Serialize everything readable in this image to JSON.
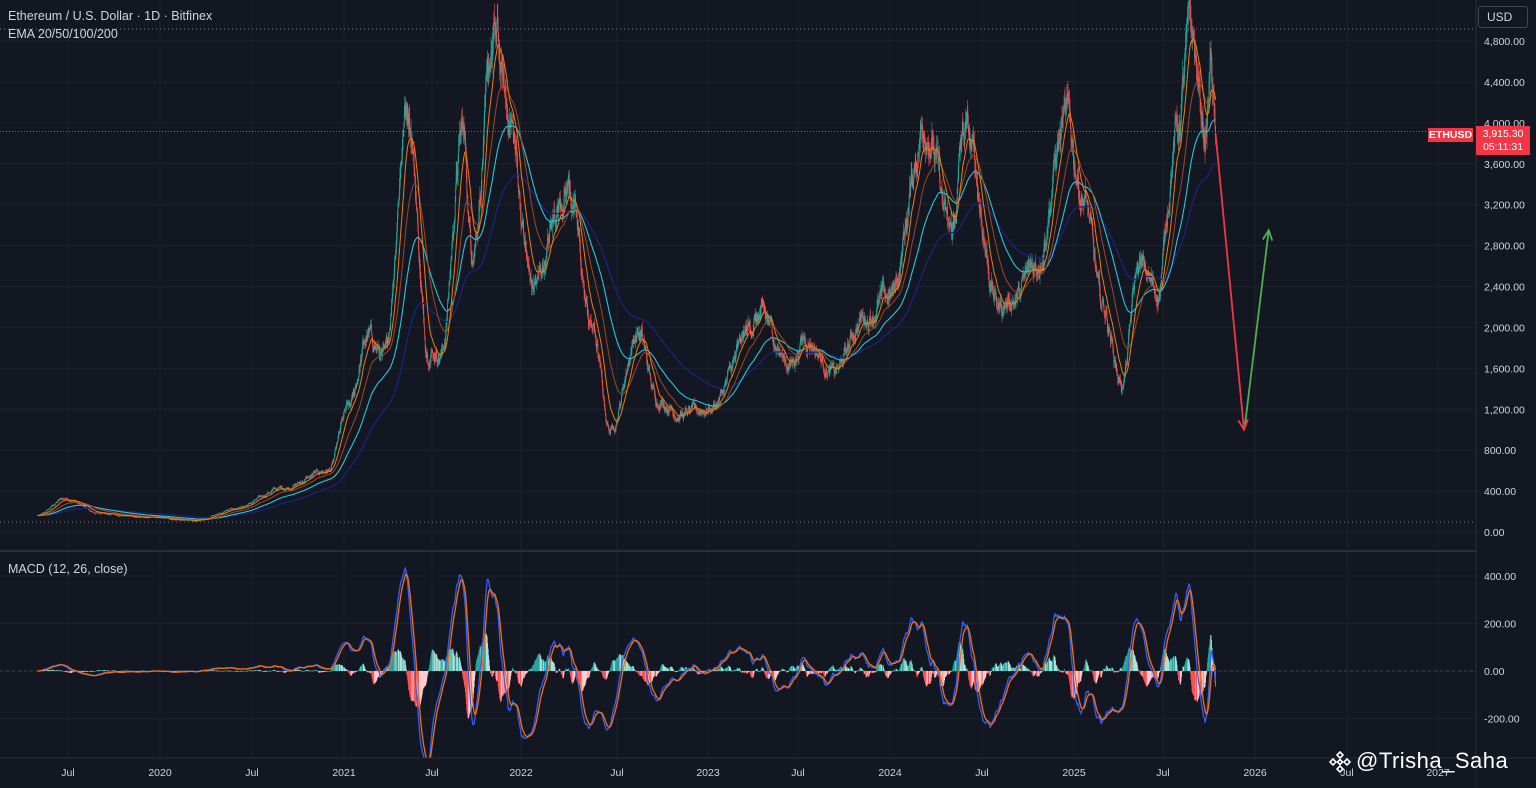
{
  "header": {
    "title": "Ethereum / U.S. Dollar · 1D · Bitfinex",
    "indicator": "EMA 20/50/100/200",
    "macd_label": "MACD (12, 26, close)"
  },
  "currency_button": "USD",
  "price_label": {
    "ticker": "ETHUSD",
    "price": "3,915.30",
    "countdown": "05:11:31",
    "color": "#f23645"
  },
  "watermark": "@Trisha_Saha",
  "colors": {
    "background": "#131722",
    "grid": "#1e222d",
    "up": "#26a69a",
    "down": "#ef5350",
    "ema20": "#f57c00",
    "ema50": "#a5451f",
    "ema100": "#26c6da",
    "ema200": "#1a237e",
    "macd": "#2962ff",
    "signal": "#ff6d00",
    "arrow_down": "#f23645",
    "arrow_up": "#4caf50"
  },
  "chart_data": [
    {
      "type": "candlestick",
      "symbol": "ETHUSD",
      "interval": "1D",
      "title": "Ethereum / U.S. Dollar · 1D · Bitfinex",
      "xaxis_ticks": [
        "Jul",
        "2020",
        "Jul",
        "2021",
        "Jul",
        "2022",
        "Jul",
        "2023",
        "Jul",
        "2024",
        "Jul",
        "2025",
        "Jul",
        "2026",
        "Jul",
        "2027"
      ],
      "yaxis_ticks": [
        "4,800.00",
        "4,400.00",
        "4,000.00",
        "3,600.00",
        "3,200.00",
        "2,800.00",
        "2,400.00",
        "2,000.00",
        "1,600.00",
        "1,200.00",
        "800.00",
        "400.00",
        "0.00"
      ],
      "ylim": [
        0,
        4900
      ],
      "last_price": 3915.3,
      "price_path": {
        "dates": [
          "2019-05-01",
          "2019-06-26",
          "2019-09-01",
          "2019-12-15",
          "2020-03-13",
          "2020-06-01",
          "2020-09-01",
          "2020-12-01",
          "2021-01-10",
          "2021-02-20",
          "2021-03-25",
          "2021-05-12",
          "2021-06-22",
          "2021-07-20",
          "2021-09-03",
          "2021-09-21",
          "2021-11-09",
          "2021-12-05",
          "2022-01-24",
          "2022-03-30",
          "2022-05-15",
          "2022-06-18",
          "2022-08-13",
          "2022-09-20",
          "2022-11-09",
          "2022-12-31",
          "2023-04-16",
          "2023-06-15",
          "2023-07-15",
          "2023-09-11",
          "2023-11-10",
          "2024-01-01",
          "2024-03-12",
          "2024-05-01",
          "2024-05-27",
          "2024-08-05",
          "2024-09-06",
          "2024-10-15",
          "2024-12-16",
          "2025-01-20",
          "2025-02-28",
          "2025-04-09",
          "2025-05-13",
          "2025-06-20",
          "2025-07-28",
          "2025-08-24",
          "2025-09-25",
          "2025-10-05",
          "2025-10-14"
        ],
        "values": [
          160,
          330,
          180,
          140,
          110,
          240,
          430,
          600,
          1200,
          1900,
          1700,
          4200,
          1800,
          1750,
          3900,
          2800,
          4800,
          4100,
          2400,
          3400,
          2000,
          1000,
          1950,
          1300,
          1150,
          1200,
          2100,
          1650,
          1900,
          1550,
          2100,
          2300,
          4000,
          2900,
          3900,
          2200,
          2300,
          2600,
          4000,
          3300,
          2200,
          1450,
          2600,
          2350,
          3900,
          4850,
          3900,
          4600,
          3915
        ]
      },
      "series": [
        {
          "name": "EMA 20",
          "color": "#f57c00"
        },
        {
          "name": "EMA 50",
          "color": "#a5451f"
        },
        {
          "name": "EMA 100",
          "color": "#26c6da"
        },
        {
          "name": "EMA 200",
          "color": "#1a237e"
        }
      ],
      "projection": [
        {
          "from": {
            "date": "2025-10-14",
            "value": 3900
          },
          "to": {
            "date": "2025-12-10",
            "value": 1000
          },
          "color": "#f23645"
        },
        {
          "from": {
            "date": "2025-12-12",
            "value": 1050
          },
          "to": {
            "date": "2026-01-28",
            "value": 2950
          },
          "color": "#4caf50"
        }
      ]
    },
    {
      "type": "macd",
      "title": "MACD (12, 26, close)",
      "yaxis_ticks": [
        "400.00",
        "200.00",
        "0.00",
        "-200.00"
      ],
      "ylim": [
        -320,
        450
      ],
      "series": [
        {
          "name": "MACD",
          "color": "#2962ff"
        },
        {
          "name": "Signal",
          "color": "#ff6d00"
        },
        {
          "name": "Histogram",
          "color": "#26a69a"
        }
      ]
    }
  ]
}
